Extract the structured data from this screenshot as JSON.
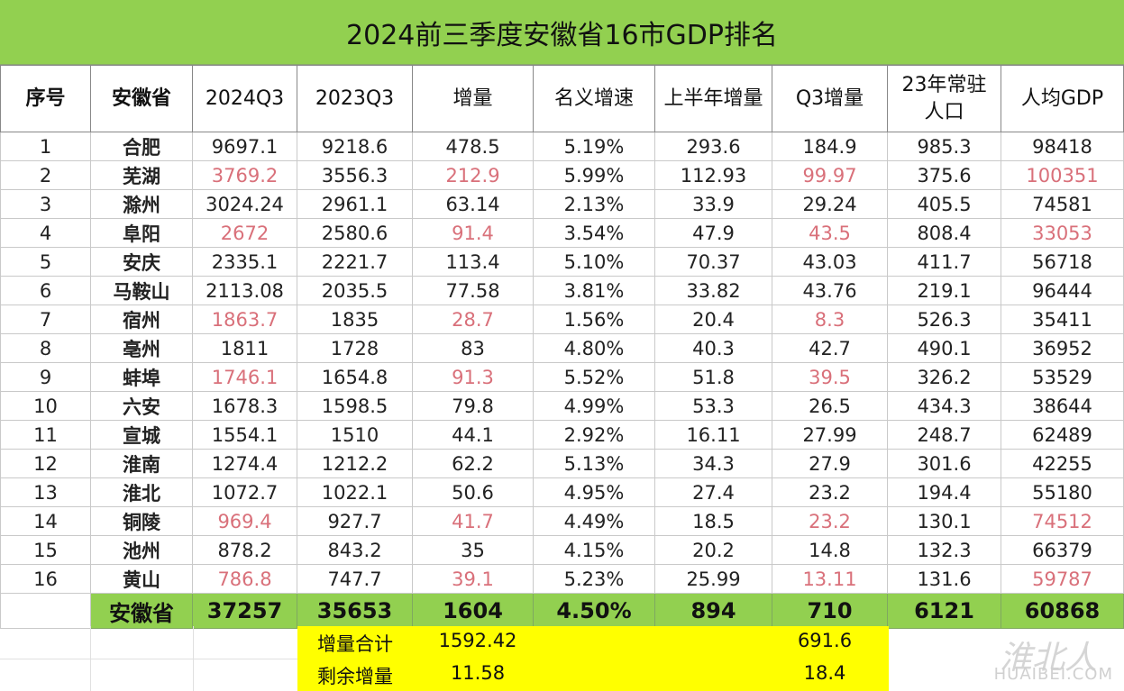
{
  "title": "2024前三季度安徽省16市GDP排名",
  "headers": [
    "序号",
    "安徽省",
    "2024Q3",
    "2023Q3",
    "增量",
    "名义增速",
    "上半年增量",
    "Q3增量",
    "23年常驻人口",
    "人均GDP"
  ],
  "rows": [
    {
      "no": "1",
      "city": "合肥",
      "q3_2024": "9697.1",
      "q3_2023": "9218.6",
      "increase": "478.5",
      "growth": "5.19%",
      "h1_increase": "293.6",
      "q3_increase": "184.9",
      "population": "985.3",
      "per_capita": "98418"
    },
    {
      "no": "2",
      "city": "芜湖",
      "q3_2024": "3769.2",
      "q3_2023": "3556.3",
      "increase": "212.9",
      "growth": "5.99%",
      "h1_increase": "112.93",
      "q3_increase": "99.97",
      "population": "375.6",
      "per_capita": "100351"
    },
    {
      "no": "3",
      "city": "滁州",
      "q3_2024": "3024.24",
      "q3_2023": "2961.1",
      "increase": "63.14",
      "growth": "2.13%",
      "h1_increase": "33.9",
      "q3_increase": "29.24",
      "population": "405.5",
      "per_capita": "74581"
    },
    {
      "no": "4",
      "city": "阜阳",
      "q3_2024": "2672",
      "q3_2023": "2580.6",
      "increase": "91.4",
      "growth": "3.54%",
      "h1_increase": "47.9",
      "q3_increase": "43.5",
      "population": "808.4",
      "per_capita": "33053"
    },
    {
      "no": "5",
      "city": "安庆",
      "q3_2024": "2335.1",
      "q3_2023": "2221.7",
      "increase": "113.4",
      "growth": "5.10%",
      "h1_increase": "70.37",
      "q3_increase": "43.03",
      "population": "411.7",
      "per_capita": "56718"
    },
    {
      "no": "6",
      "city": "马鞍山",
      "q3_2024": "2113.08",
      "q3_2023": "2035.5",
      "increase": "77.58",
      "growth": "3.81%",
      "h1_increase": "33.82",
      "q3_increase": "43.76",
      "population": "219.1",
      "per_capita": "96444"
    },
    {
      "no": "7",
      "city": "宿州",
      "q3_2024": "1863.7",
      "q3_2023": "1835",
      "increase": "28.7",
      "growth": "1.56%",
      "h1_increase": "20.4",
      "q3_increase": "8.3",
      "population": "526.3",
      "per_capita": "35411"
    },
    {
      "no": "8",
      "city": "亳州",
      "q3_2024": "1811",
      "q3_2023": "1728",
      "increase": "83",
      "growth": "4.80%",
      "h1_increase": "40.3",
      "q3_increase": "42.7",
      "population": "490.1",
      "per_capita": "36952"
    },
    {
      "no": "9",
      "city": "蚌埠",
      "q3_2024": "1746.1",
      "q3_2023": "1654.8",
      "increase": "91.3",
      "growth": "5.52%",
      "h1_increase": "51.8",
      "q3_increase": "39.5",
      "population": "326.2",
      "per_capita": "53529"
    },
    {
      "no": "10",
      "city": "六安",
      "q3_2024": "1678.3",
      "q3_2023": "1598.5",
      "increase": "79.8",
      "growth": "4.99%",
      "h1_increase": "53.3",
      "q3_increase": "26.5",
      "population": "434.3",
      "per_capita": "38644"
    },
    {
      "no": "11",
      "city": "宣城",
      "q3_2024": "1554.1",
      "q3_2023": "1510",
      "increase": "44.1",
      "growth": "2.92%",
      "h1_increase": "16.11",
      "q3_increase": "27.99",
      "population": "248.7",
      "per_capita": "62489"
    },
    {
      "no": "12",
      "city": "淮南",
      "q3_2024": "1274.4",
      "q3_2023": "1212.2",
      "increase": "62.2",
      "growth": "5.13%",
      "h1_increase": "34.3",
      "q3_increase": "27.9",
      "population": "301.6",
      "per_capita": "42255"
    },
    {
      "no": "13",
      "city": "淮北",
      "q3_2024": "1072.7",
      "q3_2023": "1022.1",
      "increase": "50.6",
      "growth": "4.95%",
      "h1_increase": "27.4",
      "q3_increase": "23.2",
      "population": "194.4",
      "per_capita": "55180"
    },
    {
      "no": "14",
      "city": "铜陵",
      "q3_2024": "969.4",
      "q3_2023": "927.7",
      "increase": "41.7",
      "growth": "4.49%",
      "h1_increase": "18.5",
      "q3_increase": "23.2",
      "population": "130.1",
      "per_capita": "74512"
    },
    {
      "no": "15",
      "city": "池州",
      "q3_2024": "878.2",
      "q3_2023": "843.2",
      "increase": "35",
      "growth": "4.15%",
      "h1_increase": "20.2",
      "q3_increase": "14.8",
      "population": "132.3",
      "per_capita": "66379"
    },
    {
      "no": "16",
      "city": "黄山",
      "q3_2024": "786.8",
      "q3_2023": "747.7",
      "increase": "39.1",
      "growth": "5.23%",
      "h1_increase": "25.99",
      "q3_increase": "13.11",
      "population": "131.6",
      "per_capita": "59787"
    }
  ],
  "total": {
    "label": "安徽省",
    "q3_2024": "37257",
    "q3_2023": "35653",
    "increase": "1604",
    "growth": "4.50%",
    "h1_increase": "894",
    "q3_increase": "710",
    "population": "6121",
    "per_capita": "60868"
  },
  "summary": [
    {
      "label": "增量合计",
      "value1": "1592.42",
      "value2": "691.6"
    },
    {
      "label": "剩余增量",
      "value1": "11.58",
      "value2": "18.4"
    }
  ],
  "watermark": {
    "cn": "淮北人",
    "en": "HUAIBEI.COM"
  },
  "colors": {
    "header_green": "#92d050",
    "highlight_red": "#d9707a",
    "summary_yellow": "#ffff00"
  }
}
